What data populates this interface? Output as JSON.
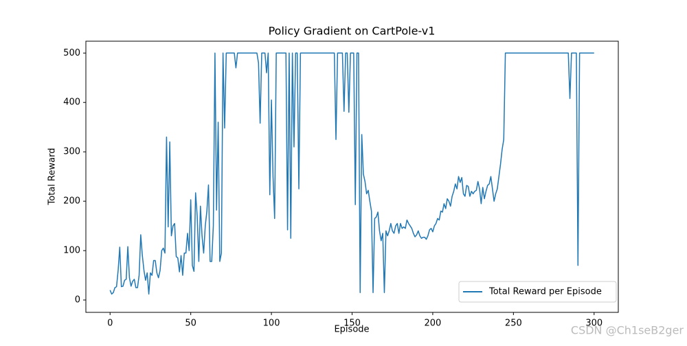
{
  "chart_data": {
    "type": "line",
    "title": "Policy Gradient on CartPole-v1",
    "x_label": "Episode",
    "y_label": "Total Reward",
    "watermark": "CSDN @Ch1seB2ger",
    "legend_position": "lower right",
    "grid": false,
    "xlim": [
      -15,
      315
    ],
    "ylim": [
      -25,
      524
    ],
    "xticks": [
      0,
      50,
      100,
      150,
      200,
      250,
      300
    ],
    "yticks": [
      0,
      100,
      200,
      300,
      400,
      500
    ],
    "x": [
      0,
      1,
      2,
      3,
      4,
      5,
      6,
      7,
      8,
      9,
      10,
      11,
      12,
      13,
      14,
      15,
      16,
      17,
      18,
      19,
      20,
      21,
      22,
      23,
      24,
      25,
      26,
      27,
      28,
      29,
      30,
      31,
      32,
      33,
      34,
      35,
      36,
      37,
      38,
      39,
      40,
      41,
      42,
      43,
      44,
      45,
      46,
      47,
      48,
      49,
      50,
      51,
      52,
      53,
      54,
      55,
      56,
      57,
      58,
      59,
      60,
      61,
      62,
      63,
      64,
      65,
      66,
      67,
      68,
      69,
      70,
      71,
      72,
      73,
      74,
      75,
      76,
      77,
      78,
      79,
      80,
      81,
      82,
      83,
      84,
      85,
      86,
      87,
      88,
      89,
      90,
      91,
      92,
      93,
      94,
      95,
      96,
      97,
      98,
      99,
      100,
      101,
      102,
      103,
      104,
      105,
      106,
      107,
      108,
      109,
      110,
      111,
      112,
      113,
      114,
      115,
      116,
      117,
      118,
      119,
      120,
      121,
      122,
      123,
      124,
      125,
      126,
      127,
      128,
      129,
      130,
      131,
      132,
      133,
      134,
      135,
      136,
      137,
      138,
      139,
      140,
      141,
      142,
      143,
      144,
      145,
      146,
      147,
      148,
      149,
      150,
      151,
      152,
      153,
      154,
      155,
      156,
      157,
      158,
      159,
      160,
      161,
      162,
      163,
      164,
      165,
      166,
      167,
      168,
      169,
      170,
      171,
      172,
      173,
      174,
      175,
      176,
      177,
      178,
      179,
      180,
      181,
      182,
      183,
      184,
      185,
      186,
      187,
      188,
      189,
      190,
      191,
      192,
      193,
      194,
      195,
      196,
      197,
      198,
      199,
      200,
      201,
      202,
      203,
      204,
      205,
      206,
      207,
      208,
      209,
      210,
      211,
      212,
      213,
      214,
      215,
      216,
      217,
      218,
      219,
      220,
      221,
      222,
      223,
      224,
      225,
      226,
      227,
      228,
      229,
      230,
      231,
      232,
      233,
      234,
      235,
      236,
      237,
      238,
      239,
      240,
      241,
      242,
      243,
      244,
      245,
      246,
      247,
      248,
      249,
      250,
      251,
      252,
      253,
      254,
      255,
      256,
      257,
      258,
      259,
      260,
      261,
      262,
      263,
      264,
      265,
      266,
      267,
      268,
      269,
      270,
      271,
      272,
      273,
      274,
      275,
      276,
      277,
      278,
      279,
      280,
      281,
      282,
      283,
      284,
      285,
      286,
      287,
      288,
      289,
      290,
      291,
      292,
      293,
      294,
      295,
      296,
      297,
      298,
      299,
      300
    ],
    "series": [
      {
        "name": "Total Reward per Episode",
        "color": "#1f77b4",
        "values": [
          20,
          12,
          15,
          25,
          27,
          60,
          107,
          27,
          28,
          40,
          42,
          108,
          45,
          28,
          38,
          42,
          25,
          25,
          50,
          132,
          90,
          60,
          40,
          55,
          12,
          55,
          50,
          80,
          80,
          55,
          45,
          60,
          100,
          105,
          95,
          330,
          148,
          320,
          130,
          150,
          155,
          88,
          85,
          57,
          90,
          50,
          95,
          95,
          135,
          100,
          203,
          70,
          58,
          217,
          170,
          78,
          190,
          130,
          95,
          150,
          180,
          233,
          78,
          78,
          150,
          500,
          182,
          360,
          78,
          95,
          500,
          348,
          500,
          500,
          500,
          500,
          500,
          500,
          470,
          500,
          500,
          500,
          500,
          500,
          500,
          500,
          500,
          500,
          500,
          500,
          500,
          500,
          480,
          358,
          500,
          500,
          500,
          460,
          500,
          213,
          405,
          250,
          165,
          500,
          500,
          500,
          500,
          500,
          500,
          500,
          142,
          500,
          125,
          500,
          310,
          500,
          500,
          225,
          500,
          500,
          500,
          500,
          500,
          500,
          500,
          500,
          500,
          500,
          500,
          500,
          500,
          500,
          500,
          500,
          500,
          500,
          500,
          500,
          500,
          500,
          325,
          500,
          500,
          500,
          500,
          382,
          500,
          500,
          380,
          500,
          500,
          500,
          193,
          500,
          500,
          15,
          335,
          255,
          240,
          215,
          222,
          200,
          180,
          15,
          165,
          168,
          178,
          140,
          120,
          135,
          15,
          140,
          130,
          140,
          155,
          140,
          135,
          150,
          155,
          135,
          155,
          145,
          148,
          145,
          162,
          155,
          150,
          145,
          135,
          128,
          132,
          140,
          130,
          125,
          127,
          127,
          123,
          130,
          142,
          145,
          138,
          150,
          155,
          165,
          162,
          180,
          178,
          195,
          185,
          205,
          200,
          190,
          210,
          220,
          235,
          225,
          250,
          238,
          248,
          215,
          210,
          232,
          230,
          210,
          220,
          215,
          220,
          222,
          240,
          225,
          195,
          228,
          205,
          220,
          232,
          235,
          250,
          225,
          200,
          215,
          225,
          250,
          275,
          305,
          325,
          500,
          500,
          500,
          500,
          500,
          500,
          500,
          500,
          500,
          500,
          500,
          500,
          500,
          500,
          500,
          500,
          500,
          500,
          500,
          500,
          500,
          500,
          500,
          500,
          500,
          500,
          500,
          500,
          500,
          500,
          500,
          500,
          500,
          500,
          500,
          500,
          500,
          500,
          500,
          500,
          408,
          500,
          500,
          500,
          500,
          70,
          500,
          500,
          500,
          500,
          500,
          500,
          500,
          500,
          500,
          500
        ]
      }
    ]
  }
}
